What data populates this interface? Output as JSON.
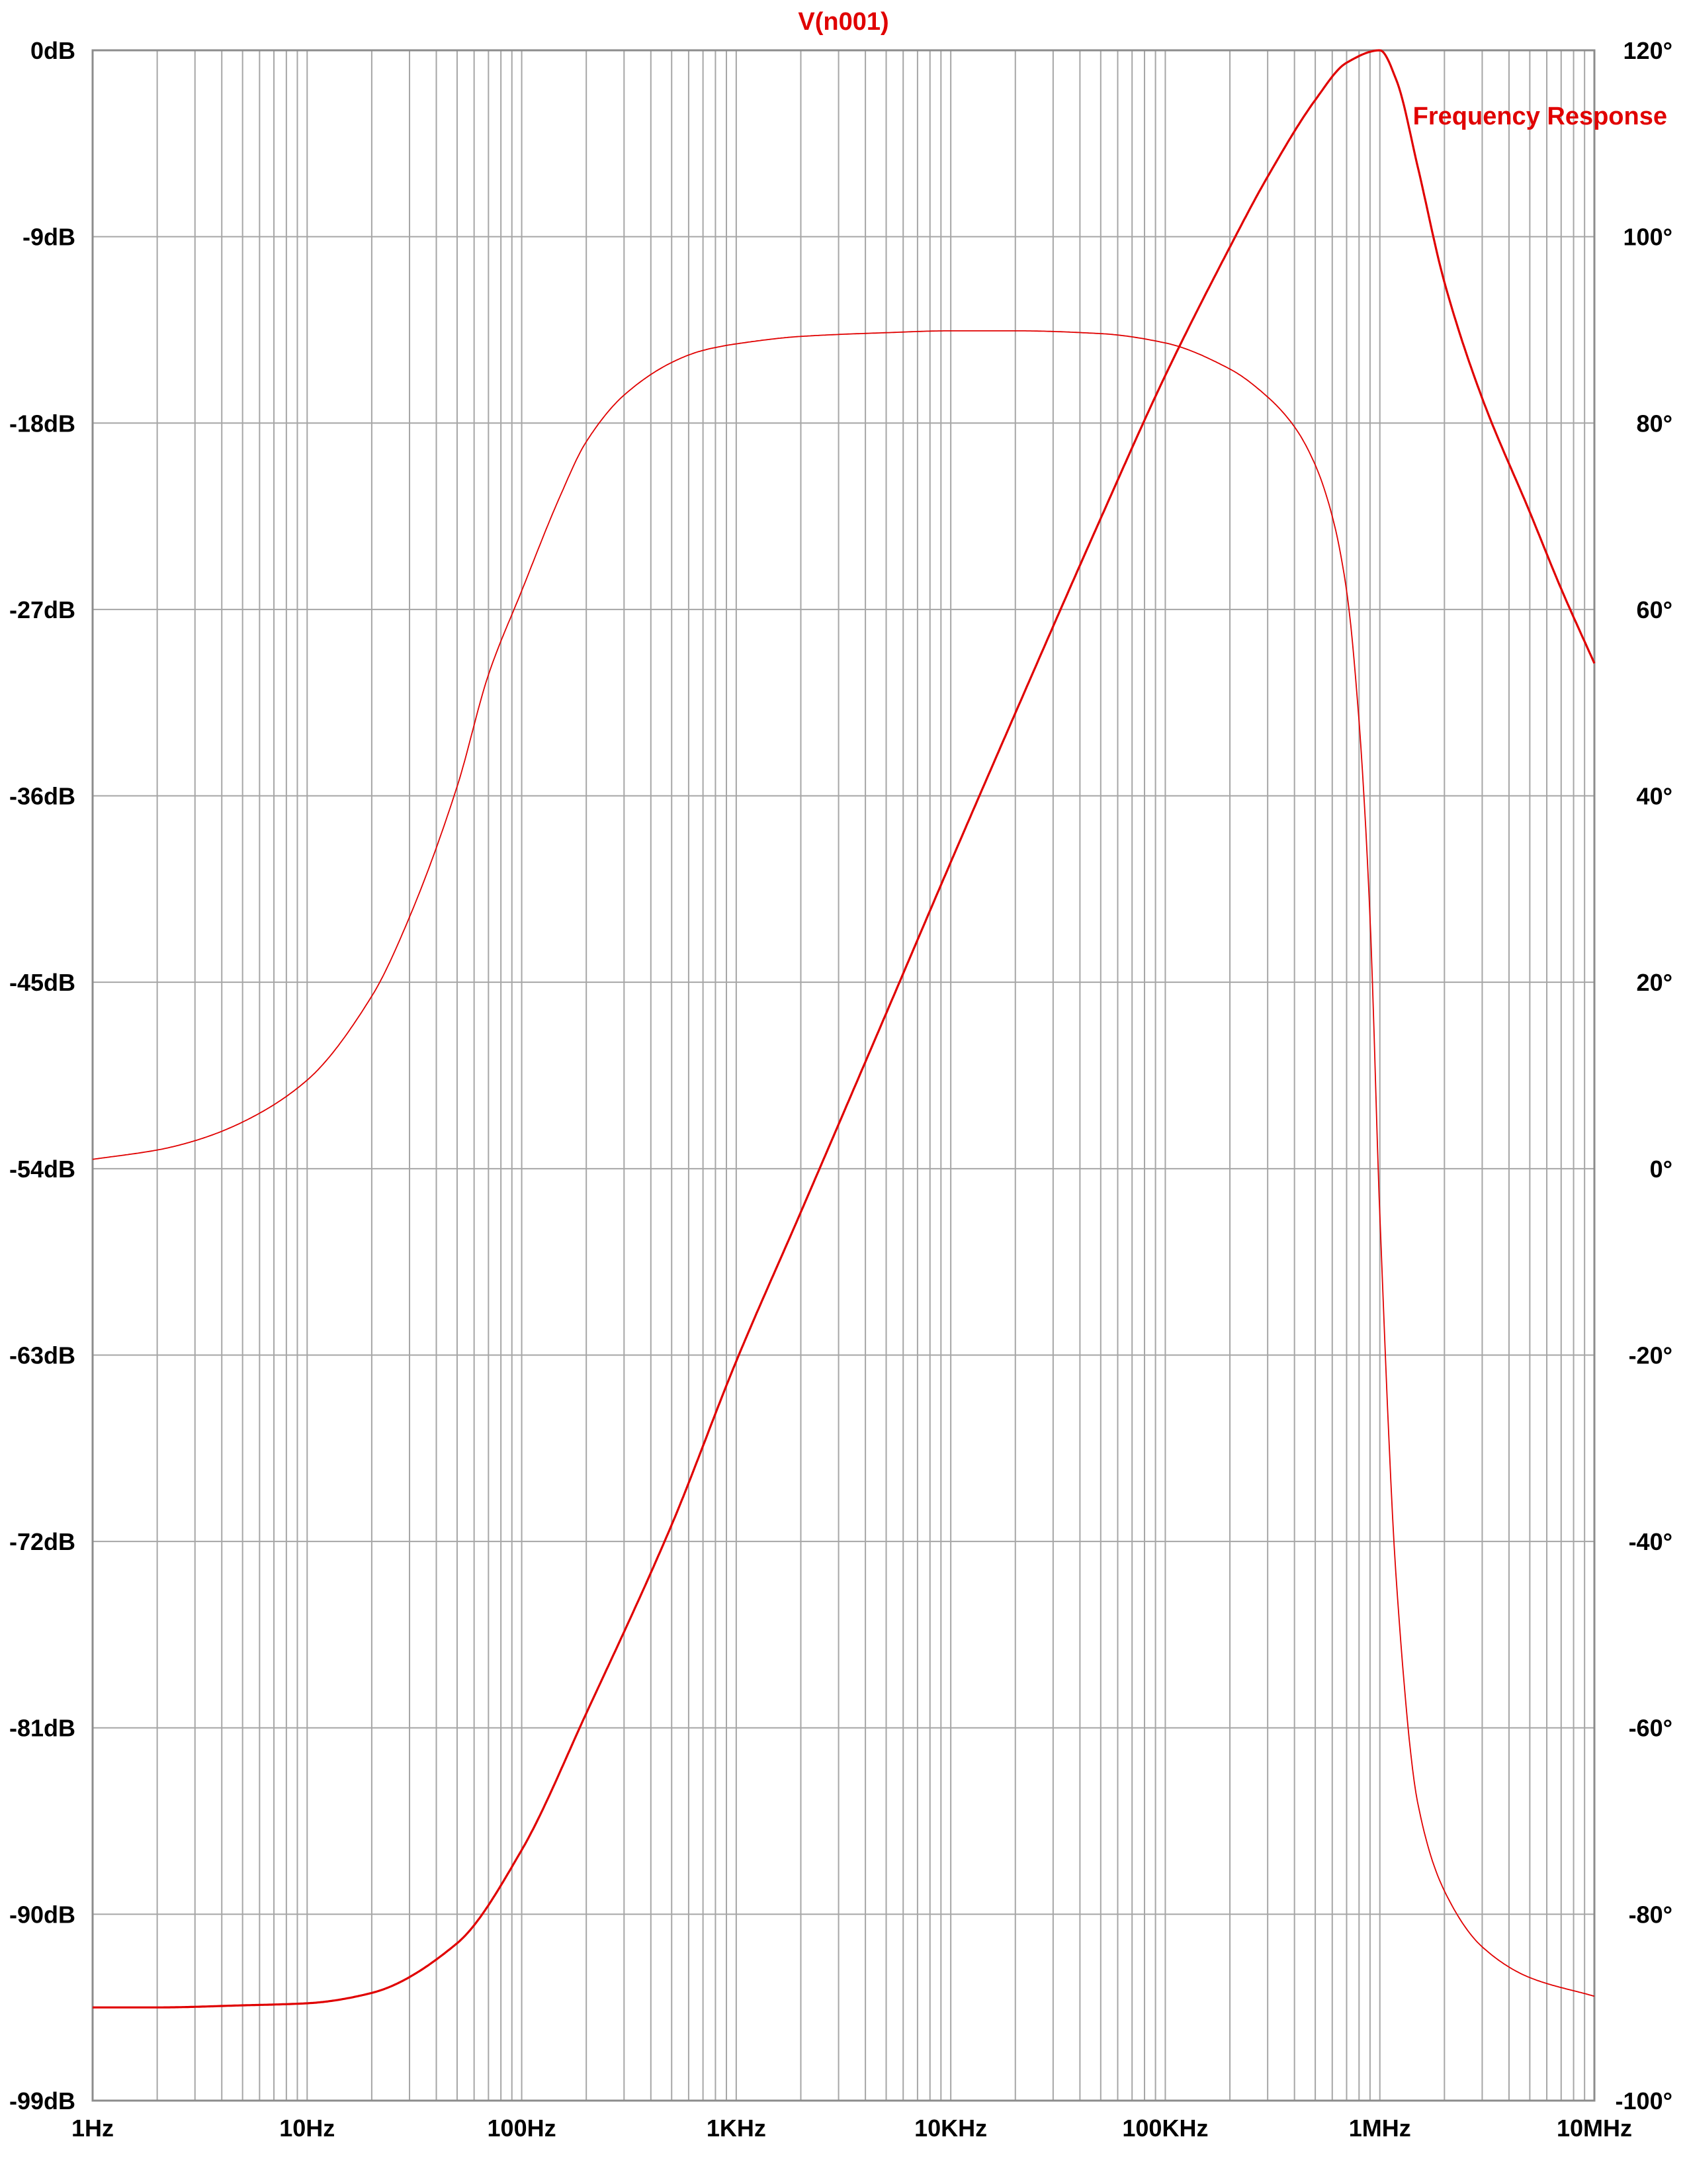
{
  "chart_data": {
    "type": "line",
    "title": "V(n001)",
    "annotation": "Frequency Response",
    "x_scale": "log",
    "xlim": [
      1,
      10000000
    ],
    "x_ticks": [
      1,
      10,
      100,
      1000,
      10000,
      100000,
      1000000,
      10000000
    ],
    "x_tick_labels": [
      "1Hz",
      "10Hz",
      "100Hz",
      "1KHz",
      "10KHz",
      "100KHz",
      "1MHz",
      "10MHz"
    ],
    "ylim_left": [
      -99,
      0
    ],
    "y_ticks_left": [
      0,
      -9,
      -18,
      -27,
      -36,
      -45,
      -54,
      -63,
      -72,
      -81,
      -90,
      -99
    ],
    "y_tick_labels_left": [
      "0dB",
      "-9dB",
      "-18dB",
      "-27dB",
      "-36dB",
      "-45dB",
      "-54dB",
      "-63dB",
      "-72dB",
      "-81dB",
      "-90dB",
      "-99dB"
    ],
    "ylim_right": [
      -100,
      120
    ],
    "y_ticks_right": [
      120,
      100,
      80,
      60,
      40,
      20,
      0,
      -20,
      -40,
      -60,
      -80,
      -100
    ],
    "y_tick_labels_right": [
      "120°",
      "100°",
      "80°",
      "60°",
      "40°",
      "20°",
      "0°",
      "-20°",
      "-40°",
      "-60°",
      "-80°",
      "-100°"
    ],
    "grid": true,
    "colors": {
      "trace": "#e00000",
      "grid": "#a6a6a6",
      "text": "#000000",
      "title": "#e00000"
    },
    "series": [
      {
        "axis": "left",
        "unit": "dB",
        "line": "thick",
        "x": [
          1,
          2,
          5,
          10,
          20,
          50,
          100,
          200,
          500,
          1000,
          2000,
          5000,
          10000,
          20000,
          50000,
          100000,
          200000,
          300000,
          500000,
          700000,
          1000000,
          1200000,
          1500000,
          2000000,
          3000000,
          5000000,
          7000000,
          10000000
        ],
        "values": [
          -94.5,
          -94.5,
          -94.4,
          -94.3,
          -93.8,
          -91.4,
          -86.9,
          -80.3,
          -71.2,
          -63.3,
          -56.1,
          -46.5,
          -39.2,
          -32.0,
          -22.6,
          -15.7,
          -9.5,
          -6.1,
          -2.4,
          -0.6,
          0.0,
          -1.5,
          -5.6,
          -11.2,
          -16.8,
          -22.3,
          -26.0,
          -29.6
        ]
      },
      {
        "axis": "right",
        "unit": "°",
        "line": "thin",
        "x": [
          1,
          2,
          3,
          5,
          10,
          20,
          30,
          50,
          70,
          100,
          150,
          200,
          300,
          500,
          700,
          1000,
          2000,
          5000,
          10000,
          20000,
          50000,
          100000,
          200000,
          300000,
          400000,
          500000,
          600000,
          700000,
          800000,
          900000,
          1000000,
          1200000,
          1500000,
          2000000,
          3000000,
          5000000,
          10000000
        ],
        "values": [
          1.0,
          2.0,
          3.0,
          5.0,
          9.5,
          18.5,
          27.0,
          41.0,
          53.0,
          62.0,
          72.0,
          78.0,
          83.0,
          86.5,
          87.8,
          88.5,
          89.3,
          89.7,
          89.9,
          89.9,
          89.6,
          88.6,
          85.8,
          82.8,
          79.6,
          75.5,
          70.0,
          62.0,
          48.0,
          27.0,
          -5.0,
          -45.0,
          -68.0,
          -77.5,
          -83.5,
          -86.8,
          -88.8
        ]
      }
    ]
  }
}
